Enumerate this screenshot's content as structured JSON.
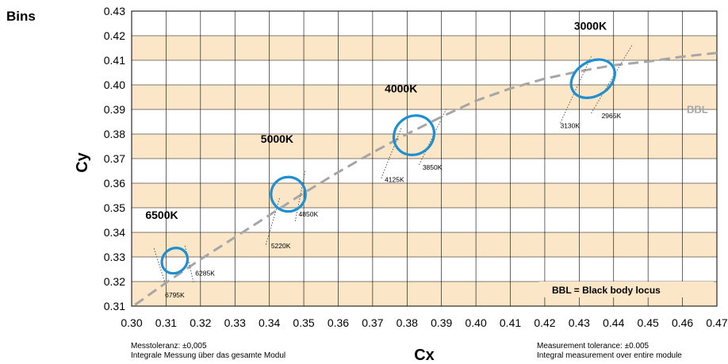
{
  "header": {
    "bins_label": "Bins"
  },
  "chart_data": {
    "type": "scatter",
    "xlabel": "Cx",
    "ylabel": "Cy",
    "xlim": [
      0.3,
      0.47
    ],
    "ylim": [
      0.31,
      0.43
    ],
    "x_ticks": [
      "0.30",
      "0.31",
      "0.32",
      "0.33",
      "0.34",
      "0.35",
      "0.36",
      "0.37",
      "0.38",
      "0.39",
      "0.40",
      "0.41",
      "0.42",
      "0.43",
      "0.44",
      "0.45",
      "0.46",
      "0.47"
    ],
    "y_ticks": [
      "0.31",
      "0.32",
      "0.33",
      "0.34",
      "0.35",
      "0.36",
      "0.37",
      "0.38",
      "0.39",
      "0.40",
      "0.41",
      "0.42",
      "0.43"
    ],
    "band_color": "#fbe6c8",
    "ellipse_color": "#1e8fd0",
    "bbl_color": "#a6a6a6",
    "bbl_curve": [
      [
        0.301,
        0.3105
      ],
      [
        0.31,
        0.3195
      ],
      [
        0.32,
        0.329
      ],
      [
        0.33,
        0.338
      ],
      [
        0.34,
        0.347
      ],
      [
        0.35,
        0.356
      ],
      [
        0.36,
        0.3645
      ],
      [
        0.37,
        0.3725
      ],
      [
        0.38,
        0.38
      ],
      [
        0.39,
        0.387
      ],
      [
        0.4,
        0.3935
      ],
      [
        0.41,
        0.3985
      ],
      [
        0.42,
        0.4025
      ],
      [
        0.43,
        0.4055
      ],
      [
        0.44,
        0.408
      ],
      [
        0.45,
        0.4095
      ],
      [
        0.46,
        0.4115
      ],
      [
        0.47,
        0.413
      ]
    ],
    "bbl_label": "BBL",
    "bins": [
      {
        "name": "6500K",
        "center": [
          0.3125,
          0.3285
        ],
        "rx": 0.0035,
        "ry": 0.0055,
        "rot": 48,
        "label_pos": [
          0.304,
          0.3455
        ],
        "cct_lines": [
          {
            "label": "6795K",
            "from": [
              0.3065,
              0.3335
            ],
            "to": [
              0.3097,
              0.3195
            ],
            "label_at": [
              0.3097,
              0.3135
            ]
          },
          {
            "label": "6285K",
            "from": [
              0.3155,
              0.3345
            ],
            "to": [
              0.318,
              0.3195
            ],
            "label_at": [
              0.3185,
              0.3225
            ]
          }
        ]
      },
      {
        "name": "5000K",
        "center": [
          0.3455,
          0.3555
        ],
        "rx": 0.005,
        "ry": 0.007,
        "rot": 48,
        "label_pos": [
          0.3375,
          0.3765
        ],
        "cct_lines": [
          {
            "label": "5220K",
            "from": [
              0.339,
              0.335
            ],
            "to": [
              0.343,
              0.354
            ],
            "label_at": [
              0.3405,
              0.3335
            ]
          },
          {
            "label": "4850K",
            "from": [
              0.3475,
              0.3445
            ],
            "to": [
              0.3505,
              0.3655
            ],
            "label_at": [
              0.3485,
              0.3465
            ]
          }
        ]
      },
      {
        "name": "4000K",
        "center": [
          0.382,
          0.3795
        ],
        "rx": 0.0055,
        "ry": 0.0085,
        "rot": 52,
        "label_pos": [
          0.3735,
          0.397
        ],
        "cct_lines": [
          {
            "label": "4125K",
            "from": [
              0.3725,
              0.362
            ],
            "to": [
              0.3785,
              0.383
            ],
            "label_at": [
              0.3735,
              0.3605
            ]
          },
          {
            "label": "3850K",
            "from": [
              0.3835,
              0.3675
            ],
            "to": [
              0.3915,
              0.3905
            ],
            "label_at": [
              0.3845,
              0.3655
            ]
          }
        ]
      },
      {
        "name": "3000K",
        "center": [
          0.434,
          0.4025
        ],
        "rx": 0.005,
        "ry": 0.0095,
        "rot": 58,
        "label_pos": [
          0.4285,
          0.4225
        ],
        "cct_lines": [
          {
            "label": "3130K",
            "from": [
              0.4245,
              0.3845
            ],
            "to": [
              0.4335,
              0.4115
            ],
            "label_at": [
              0.4245,
              0.3825
            ]
          },
          {
            "label": "2965K",
            "from": [
              0.4335,
              0.3885
            ],
            "to": [
              0.4455,
              0.4165
            ],
            "label_at": [
              0.4365,
              0.3865
            ]
          }
        ]
      }
    ],
    "legend_note": "BBL = Black body locus"
  },
  "footer": {
    "left_line1": "Messtoleranz: ±0,005",
    "left_line2": "Integrale Messung über das gesamte Modul",
    "right_line1": "Measurement tolerance: ±0.005",
    "right_line2": "Integral measurement over entire module"
  }
}
